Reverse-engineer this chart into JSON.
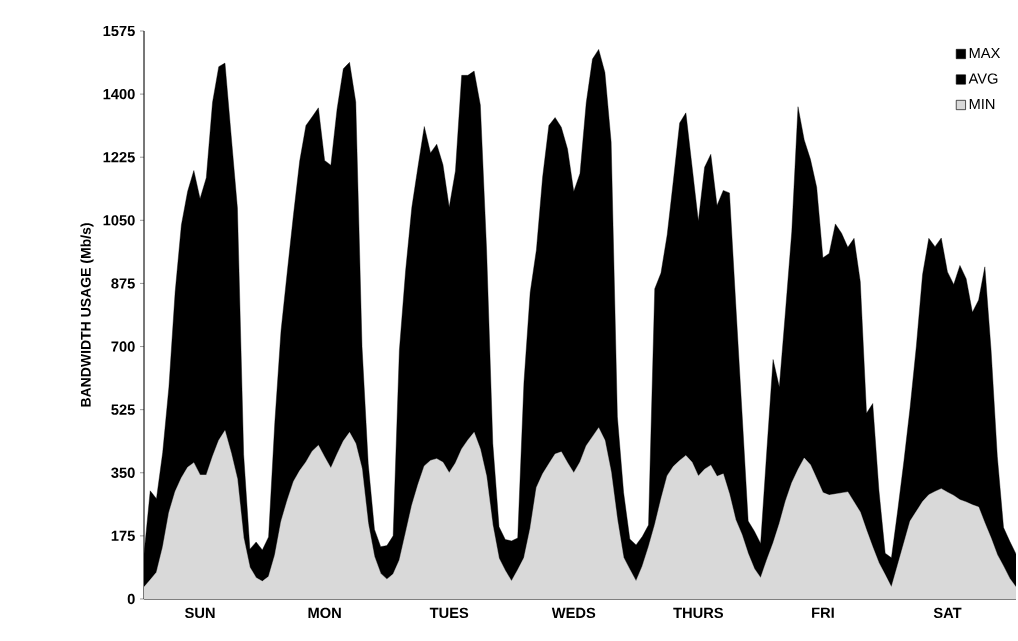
{
  "chart_data": {
    "type": "area",
    "ylabel": "BANDWIDTH USAGE (Mb/s)",
    "categories": [
      null,
      null,
      null,
      null,
      null,
      null,
      null,
      null,
      null,
      "SUN",
      null,
      null,
      null,
      null,
      null,
      null,
      null,
      null,
      null,
      null,
      null,
      null,
      null,
      null,
      null,
      null,
      null,
      null,
      null,
      "MON",
      null,
      null,
      null,
      null,
      null,
      null,
      null,
      null,
      null,
      null,
      null,
      null,
      null,
      null,
      null,
      null,
      null,
      null,
      null,
      "TUES",
      null,
      null,
      null,
      null,
      null,
      null,
      null,
      null,
      null,
      null,
      null,
      null,
      null,
      null,
      null,
      null,
      null,
      null,
      null,
      "WEDS",
      null,
      null,
      null,
      null,
      null,
      null,
      null,
      null,
      null,
      null,
      null,
      null,
      null,
      null,
      null,
      null,
      null,
      null,
      null,
      "THURS",
      null,
      null,
      null,
      null,
      null,
      null,
      null,
      null,
      null,
      null,
      null,
      null,
      null,
      null,
      null,
      null,
      null,
      null,
      null,
      "FRI",
      null,
      null,
      null,
      null,
      null,
      null,
      null,
      null,
      null,
      null,
      null,
      null,
      null,
      null,
      null,
      null,
      null,
      null,
      null,
      "SAT",
      null,
      null,
      null,
      null,
      null,
      null,
      null,
      null,
      null,
      null,
      null
    ],
    "ylim": [
      0,
      1575
    ],
    "yticks": [
      0,
      175,
      350,
      525,
      700,
      875,
      1050,
      1225,
      1400,
      1575
    ],
    "legend": "top right",
    "grid": false,
    "series": [
      {
        "name": "MAX",
        "color": "#000000",
        "values": [
          125,
          300,
          278,
          406,
          588,
          851,
          1037,
          1130,
          1188,
          1110,
          1168,
          1377,
          1476,
          1486,
          1284,
          1084,
          400,
          138,
          158,
          136,
          172,
          489,
          744,
          907,
          1066,
          1215,
          1313,
          1337,
          1362,
          1216,
          1203,
          1359,
          1470,
          1488,
          1378,
          700,
          375,
          193,
          145,
          148,
          175,
          690,
          910,
          1086,
          1200,
          1310,
          1237,
          1261,
          1204,
          1086,
          1187,
          1452,
          1452,
          1464,
          1370,
          970,
          431,
          200,
          165,
          161,
          169,
          600,
          850,
          968,
          1170,
          1313,
          1335,
          1308,
          1248,
          1130,
          1180,
          1376,
          1497,
          1524,
          1460,
          1267,
          505,
          295,
          166,
          150,
          173,
          205,
          860,
          904,
          1010,
          1162,
          1320,
          1348,
          1198,
          1048,
          1197,
          1233,
          1091,
          1133,
          1126,
          820,
          520,
          216,
          188,
          154,
          413,
          664,
          588,
          800,
          1018,
          1365,
          1273,
          1219,
          1142,
          946,
          958,
          1040,
          1014,
          975,
          1000,
          880,
          515,
          542,
          300,
          127,
          114,
          244,
          382,
          531,
          701,
          900,
          1000,
          977,
          1001,
          907,
          872,
          925,
          888,
          795,
          829,
          921,
          690,
          395,
          198,
          160,
          125
        ]
      },
      {
        "name": "AVG",
        "color": "#000000",
        "values": [
          null,
          null,
          null,
          null,
          null,
          null,
          null,
          null,
          null,
          null,
          null,
          null,
          null,
          null,
          null,
          null,
          null,
          null,
          null,
          null,
          null,
          null,
          null,
          null,
          null,
          null,
          null,
          null,
          null,
          null,
          null,
          null,
          null,
          null,
          null,
          null,
          null,
          null,
          null,
          null,
          null,
          null,
          null,
          null,
          null,
          null,
          null,
          null,
          null,
          null,
          null,
          null,
          null,
          null,
          null,
          null,
          null,
          null,
          null,
          null,
          null,
          null,
          null,
          null,
          null,
          null,
          null,
          null,
          null,
          null,
          null,
          null,
          null,
          null,
          null,
          null,
          null,
          null,
          null,
          null,
          null,
          null,
          null,
          null,
          null,
          null,
          null,
          null,
          null,
          null,
          null,
          null,
          null,
          null,
          null,
          null,
          null,
          null,
          null,
          null,
          null,
          null,
          null,
          null,
          null,
          null,
          null,
          null,
          null,
          null,
          null,
          null,
          null,
          null,
          null,
          null,
          null,
          null,
          null,
          null,
          null,
          null,
          null,
          null,
          null,
          null,
          null,
          null,
          null,
          null,
          null,
          null,
          null,
          null,
          null,
          null,
          null,
          null,
          null,
          null,
          null
        ]
      },
      {
        "name": "MIN",
        "color": "#d9d9d9",
        "values": [
          33,
          53,
          74,
          144,
          240,
          298,
          336,
          365,
          378,
          344,
          344,
          395,
          440,
          467,
          405,
          333,
          170,
          88,
          59,
          49,
          62,
          122,
          215,
          274,
          326,
          356,
          380,
          410,
          426,
          394,
          363,
          402,
          438,
          462,
          431,
          362,
          210,
          118,
          71,
          55,
          69,
          108,
          184,
          260,
          318,
          369,
          384,
          389,
          379,
          350,
          377,
          416,
          441,
          462,
          416,
          340,
          205,
          113,
          79,
          50,
          81,
          114,
          196,
          309,
          347,
          375,
          402,
          408,
          378,
          350,
          380,
          425,
          450,
          475,
          440,
          353,
          221,
          115,
          82,
          50,
          91,
          145,
          206,
          277,
          342,
          368,
          384,
          398,
          379,
          341,
          360,
          371,
          340,
          347,
          291,
          220,
          179,
          126,
          84,
          59,
          109,
          155,
          209,
          272,
          322,
          359,
          391,
          372,
          334,
          295,
          288,
          291,
          294,
          297,
          269,
          241,
          191,
          144,
          100,
          67,
          33,
          94,
          155,
          216,
          243,
          270,
          289,
          298,
          306,
          296,
          287,
          275,
          269,
          261,
          255,
          211,
          169,
          123,
          91,
          57,
          33
        ]
      }
    ]
  }
}
